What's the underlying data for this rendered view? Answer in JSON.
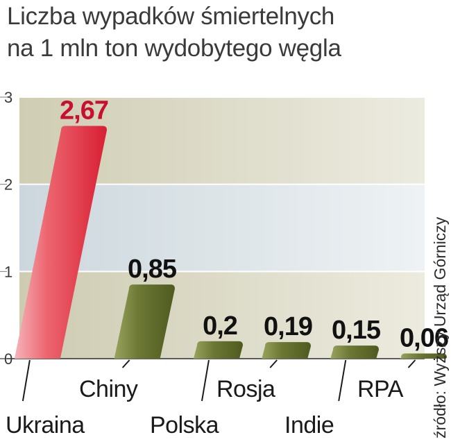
{
  "chart_data": {
    "type": "bar",
    "title": "Liczba wypadków śmiertelnych",
    "subtitle": "na 1 mln ton wydobytego węgla",
    "categories": [
      "Ukraina",
      "Chiny",
      "Polska",
      "Rosja",
      "Indie",
      "RPA"
    ],
    "values": [
      2.67,
      0.85,
      0.2,
      0.19,
      0.15,
      0.06
    ],
    "value_labels": [
      "2,67",
      "0,85",
      "0,2",
      "0,19",
      "0,15",
      "0,06"
    ],
    "ylim": [
      0,
      3
    ],
    "yticks": [
      "0",
      "1",
      "2",
      "3"
    ],
    "source": "źródło: Wyższy Urząd Górniczy",
    "highlight_index": 0,
    "grid": true
  },
  "colors": {
    "highlight_bar": "#e23a48",
    "highlight_bar_light": "#f39aa3",
    "bar": "#5e6b2a",
    "bar_light": "#93a05a",
    "highlight_value": "#c8102e",
    "value": "#111111",
    "band_top": "#deddc8",
    "band_mid": "#dfe6ea",
    "band_low": "#dcdbc6"
  }
}
